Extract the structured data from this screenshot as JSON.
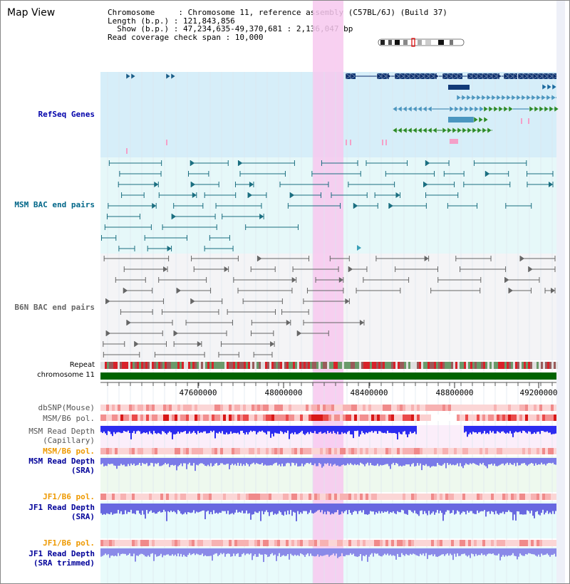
{
  "view": {
    "title": "Map View"
  },
  "info": {
    "line1": "Chromosome     : Chromosome 11, reference assembly (C57BL/6J) (Build 37)",
    "line2": "Length (b.p.) : 121,843,856",
    "line3": "  Show (b.p.) : 47,234,635-49,370,681 : 2,136,047 bp",
    "line4": "Read coverage check span : 10,000"
  },
  "tracks": {
    "refseq": "RefSeq Genes",
    "msm_bac": "MSM BAC end pairs",
    "b6n_bac": "B6N BAC end pairs",
    "repeat": "Repeat",
    "chromosome": "chromosome 11",
    "dbsnp": "dbSNP(Mouse)",
    "msm_b6_pol_1": "MSM/B6 pol.",
    "msm_read_depth_cap": "MSM Read Depth\n(Capillary)",
    "msm_b6_pol_2": "MSM/B6 pol.",
    "msm_read_depth_sra": "MSM Read Depth\n(SRA)",
    "jf1_b6_pol_1": "JF1/B6 pol.",
    "jf1_read_depth_sra": "JF1 Read Depth\n(SRA)",
    "jf1_b6_pol_2": "JF1/B6 pol.",
    "jf1_read_depth_trim": "JF1 Read Depth\n(SRA trimmed)"
  },
  "axis": {
    "ticks": [
      "47600000",
      "48000000",
      "48400000",
      "48800000",
      "49200000"
    ]
  },
  "colors": {
    "refseq_label": "#0000aa",
    "msm_label": "#006688",
    "b6n_label": "#666666",
    "orange_label": "#ee9900",
    "blue_label": "#000099",
    "highlight": "#f7c8ef",
    "chromosome_bar": "#006400"
  }
}
